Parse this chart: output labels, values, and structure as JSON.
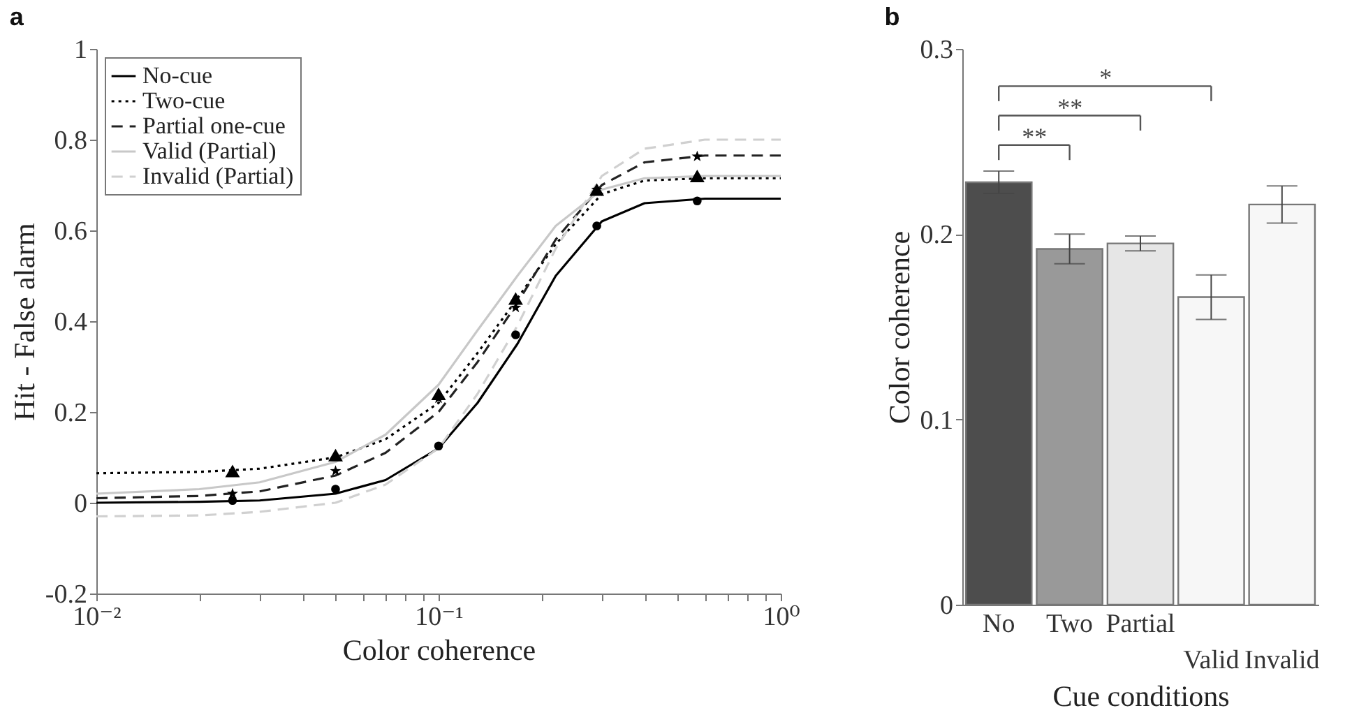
{
  "chart_data": [
    {
      "type": "line",
      "title": "a",
      "xlabel": "Color coherence",
      "ylabel": "Hit - False alarm",
      "log": "x",
      "xlim": [
        0.01,
        1
      ],
      "ylim": [
        -0.2,
        1
      ],
      "xticks": [
        {
          "value": 0.01,
          "label": "10⁻²"
        },
        {
          "value": 0.02,
          "label": null
        },
        {
          "value": 0.03,
          "label": null
        },
        {
          "value": 0.04,
          "label": null
        },
        {
          "value": 0.05,
          "label": null
        },
        {
          "value": 0.06,
          "label": null
        },
        {
          "value": 0.07,
          "label": null
        },
        {
          "value": 0.08,
          "label": null
        },
        {
          "value": 0.09,
          "label": null
        },
        {
          "value": 0.1,
          "label": "10⁻¹"
        },
        {
          "value": 0.2,
          "label": null
        },
        {
          "value": 0.3,
          "label": null
        },
        {
          "value": 0.4,
          "label": null
        },
        {
          "value": 0.5,
          "label": null
        },
        {
          "value": 0.6,
          "label": null
        },
        {
          "value": 0.7,
          "label": null
        },
        {
          "value": 0.8,
          "label": null
        },
        {
          "value": 0.9,
          "label": null
        },
        {
          "value": 1,
          "label": "10⁰"
        }
      ],
      "yticks": [
        -0.2,
        0,
        0.2,
        0.4,
        0.6,
        0.8,
        1
      ],
      "grid": false,
      "legend": "top left",
      "series": [
        {
          "name": "No-cue",
          "type": "line",
          "line_style": "solid",
          "color": "#000000",
          "x": [
            0.01,
            0.02,
            0.03,
            0.05,
            0.07,
            0.1,
            0.13,
            0.17,
            0.22,
            0.3,
            0.4,
            0.6,
            1
          ],
          "values": [
            0,
            0.002,
            0.005,
            0.02,
            0.05,
            0.12,
            0.22,
            0.35,
            0.5,
            0.62,
            0.66,
            0.67,
            0.67
          ]
        },
        {
          "name": "Two-cue",
          "type": "line",
          "line_style": "dotted",
          "color": "#000000",
          "x": [
            0.01,
            0.02,
            0.03,
            0.05,
            0.07,
            0.1,
            0.13,
            0.17,
            0.22,
            0.3,
            0.4,
            0.6,
            1
          ],
          "values": [
            0.065,
            0.068,
            0.075,
            0.1,
            0.14,
            0.22,
            0.33,
            0.45,
            0.57,
            0.68,
            0.71,
            0.715,
            0.715
          ]
        },
        {
          "name": "Partial one-cue",
          "type": "line",
          "line_style": "dashed",
          "color": "#222222",
          "x": [
            0.01,
            0.02,
            0.03,
            0.05,
            0.07,
            0.1,
            0.13,
            0.17,
            0.22,
            0.3,
            0.4,
            0.6,
            1
          ],
          "values": [
            0.01,
            0.015,
            0.025,
            0.06,
            0.11,
            0.2,
            0.31,
            0.44,
            0.58,
            0.7,
            0.75,
            0.765,
            0.765
          ]
        },
        {
          "name": "Valid (Partial)",
          "type": "line",
          "line_style": "solid",
          "color": "#c8c8c8",
          "x": [
            0.01,
            0.02,
            0.03,
            0.05,
            0.07,
            0.1,
            0.13,
            0.17,
            0.22,
            0.3,
            0.4,
            0.6,
            1
          ],
          "values": [
            0.02,
            0.03,
            0.045,
            0.09,
            0.15,
            0.26,
            0.38,
            0.5,
            0.61,
            0.69,
            0.715,
            0.72,
            0.72
          ]
        },
        {
          "name": "Invalid (Partial)",
          "type": "line",
          "line_style": "dashed",
          "color": "#d0d0d0",
          "x": [
            0.01,
            0.02,
            0.03,
            0.05,
            0.07,
            0.1,
            0.13,
            0.17,
            0.22,
            0.3,
            0.4,
            0.6,
            1
          ],
          "values": [
            -0.03,
            -0.028,
            -0.02,
            0,
            0.04,
            0.12,
            0.24,
            0.39,
            0.56,
            0.72,
            0.78,
            0.8,
            0.8
          ]
        },
        {
          "type": "scatter",
          "marker": "circle",
          "color": "#000000",
          "x": [
            0.025,
            0.05,
            0.1,
            0.168,
            0.29,
            0.57
          ],
          "values": [
            0.005,
            0.03,
            0.125,
            0.37,
            0.61,
            0.665
          ]
        },
        {
          "type": "scatter",
          "marker": "triangle",
          "color": "#000000",
          "x": [
            0.025,
            0.05,
            0.1,
            0.168,
            0.29,
            0.57
          ],
          "values": [
            0.07,
            0.105,
            0.24,
            0.45,
            0.69,
            0.72
          ]
        },
        {
          "type": "scatter",
          "marker": "star",
          "color": "#000000",
          "x": [
            0.025,
            0.05,
            0.1,
            0.168,
            0.29,
            0.57
          ],
          "values": [
            0.02,
            0.07,
            0.23,
            0.43,
            0.69,
            0.763
          ]
        }
      ]
    },
    {
      "type": "bar",
      "title": "b",
      "xlabel": "Cue conditions",
      "ylabel": "Color coherence",
      "categories": [
        "No",
        "Two",
        "Partial",
        "Valid",
        "Invalid"
      ],
      "values": [
        0.228,
        0.192,
        0.195,
        0.166,
        0.216
      ],
      "errors": [
        0.006,
        0.008,
        0.004,
        0.012,
        0.01
      ],
      "colors": [
        "#4d4d4d",
        "#999999",
        "#e6e6e6",
        "#f7f7f7",
        "#f7f7f7"
      ],
      "ylim": [
        0,
        0.3
      ],
      "yticks": [
        0,
        0.1,
        0.2,
        0.3
      ],
      "grid": false,
      "annotations": [
        "**",
        "**",
        "*"
      ]
    }
  ]
}
